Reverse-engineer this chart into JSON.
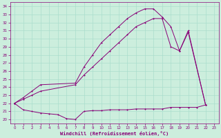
{
  "xlabel": "Windchill (Refroidissement éolien,°C)",
  "bg_color": "#cceedd",
  "line_color": "#880077",
  "grid_color": "#aaddcc",
  "xlim": [
    -0.5,
    23.5
  ],
  "ylim": [
    19.5,
    34.5
  ],
  "yticks": [
    20,
    21,
    22,
    23,
    24,
    25,
    26,
    27,
    28,
    29,
    30,
    31,
    32,
    33,
    34
  ],
  "xticks": [
    0,
    1,
    2,
    3,
    4,
    5,
    6,
    7,
    8,
    9,
    10,
    11,
    12,
    13,
    14,
    15,
    16,
    17,
    18,
    19,
    20,
    21,
    22,
    23
  ],
  "curve1_x": [
    0,
    1,
    2,
    3,
    4,
    5,
    6,
    7,
    8,
    9,
    10,
    11,
    12,
    13,
    14,
    15,
    16,
    17,
    18,
    19,
    20,
    21,
    22
  ],
  "curve1_y": [
    22.0,
    21.2,
    21.0,
    20.8,
    20.7,
    20.6,
    20.1,
    20.0,
    21.0,
    21.1,
    21.1,
    21.2,
    21.2,
    21.2,
    21.3,
    21.3,
    21.3,
    21.3,
    21.5,
    21.5,
    21.5,
    21.5,
    21.8
  ],
  "curve2_x": [
    0,
    1,
    2,
    3,
    7,
    8,
    9,
    10,
    11,
    12,
    13,
    14,
    15,
    16,
    17,
    18,
    19,
    20,
    22
  ],
  "curve2_y": [
    22.0,
    22.5,
    23.0,
    23.5,
    24.3,
    25.5,
    26.5,
    27.5,
    28.5,
    29.5,
    30.5,
    31.5,
    32.0,
    32.5,
    32.5,
    29.0,
    28.5,
    31.0,
    21.8
  ],
  "curve3_x": [
    0,
    1,
    2,
    3,
    7,
    8,
    9,
    10,
    11,
    12,
    13,
    14,
    15,
    16,
    17,
    18,
    19,
    20,
    22
  ],
  "curve3_y": [
    22.0,
    22.7,
    23.5,
    24.3,
    24.5,
    26.5,
    28.0,
    29.5,
    30.5,
    31.5,
    32.5,
    33.2,
    33.7,
    33.7,
    32.7,
    31.5,
    28.5,
    30.8,
    21.8
  ]
}
